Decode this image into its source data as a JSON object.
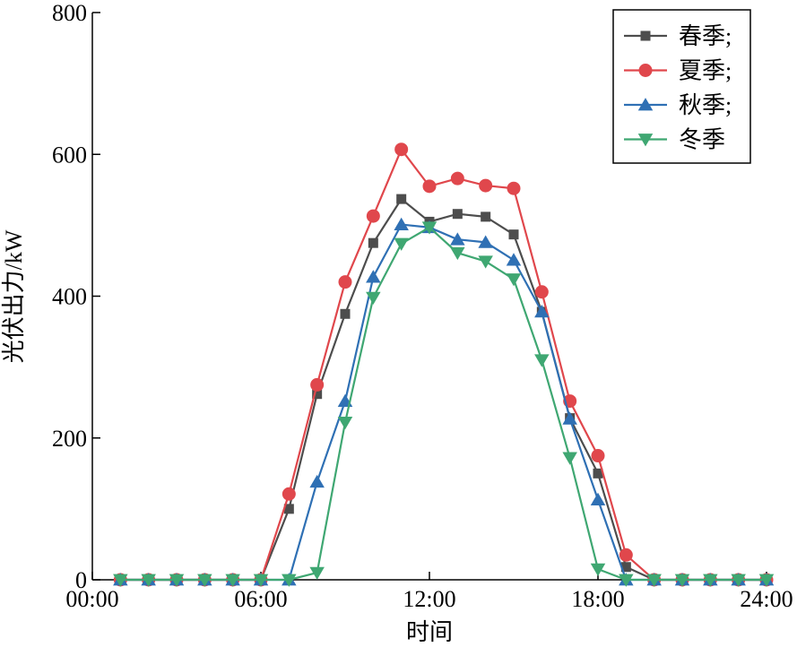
{
  "chart_data": {
    "type": "line",
    "xlabel": "时间",
    "ylabel": "光伏出力/kW",
    "xlim": [
      0,
      24
    ],
    "ylim": [
      0,
      800
    ],
    "x_ticks": [
      {
        "value": 0,
        "label": "00:00"
      },
      {
        "value": 6,
        "label": "06:00"
      },
      {
        "value": 12,
        "label": "12:00"
      },
      {
        "value": 18,
        "label": "18:00"
      },
      {
        "value": 24,
        "label": "24:00"
      }
    ],
    "y_ticks": [
      {
        "value": 0,
        "label": "0"
      },
      {
        "value": 200,
        "label": "200"
      },
      {
        "value": 400,
        "label": "400"
      },
      {
        "value": 600,
        "label": "600"
      },
      {
        "value": 800,
        "label": "800"
      }
    ],
    "grid": false,
    "legend_position": "top-right",
    "x": [
      1,
      2,
      3,
      4,
      5,
      6,
      7,
      8,
      9,
      10,
      11,
      12,
      13,
      14,
      15,
      16,
      17,
      18,
      19,
      20,
      21,
      22,
      23,
      24
    ],
    "series": [
      {
        "name": "春季;",
        "color": "#4d4d4d",
        "marker": "square",
        "values": [
          0,
          0,
          0,
          0,
          0,
          0,
          100,
          262,
          375,
          475,
          537,
          505,
          516,
          512,
          487,
          378,
          228,
          150,
          18,
          0,
          0,
          0,
          0,
          0
        ]
      },
      {
        "name": "夏季;",
        "color": "#e0474c",
        "marker": "circle",
        "values": [
          0,
          0,
          0,
          0,
          0,
          0,
          121,
          275,
          420,
          513,
          607,
          555,
          566,
          556,
          552,
          406,
          252,
          175,
          35,
          0,
          0,
          0,
          0,
          0
        ]
      },
      {
        "name": "秋季;",
        "color": "#2f70b4",
        "marker": "triangle-up",
        "values": [
          0,
          0,
          0,
          0,
          0,
          0,
          0,
          138,
          252,
          427,
          501,
          497,
          480,
          476,
          451,
          378,
          227,
          113,
          0,
          0,
          0,
          0,
          0,
          0
        ]
      },
      {
        "name": "冬季",
        "color": "#3fa772",
        "marker": "triangle-down",
        "values": [
          0,
          0,
          0,
          0,
          0,
          0,
          0,
          10,
          222,
          398,
          474,
          497,
          461,
          449,
          424,
          310,
          172,
          15,
          0,
          0,
          0,
          0,
          0,
          0
        ]
      }
    ]
  }
}
